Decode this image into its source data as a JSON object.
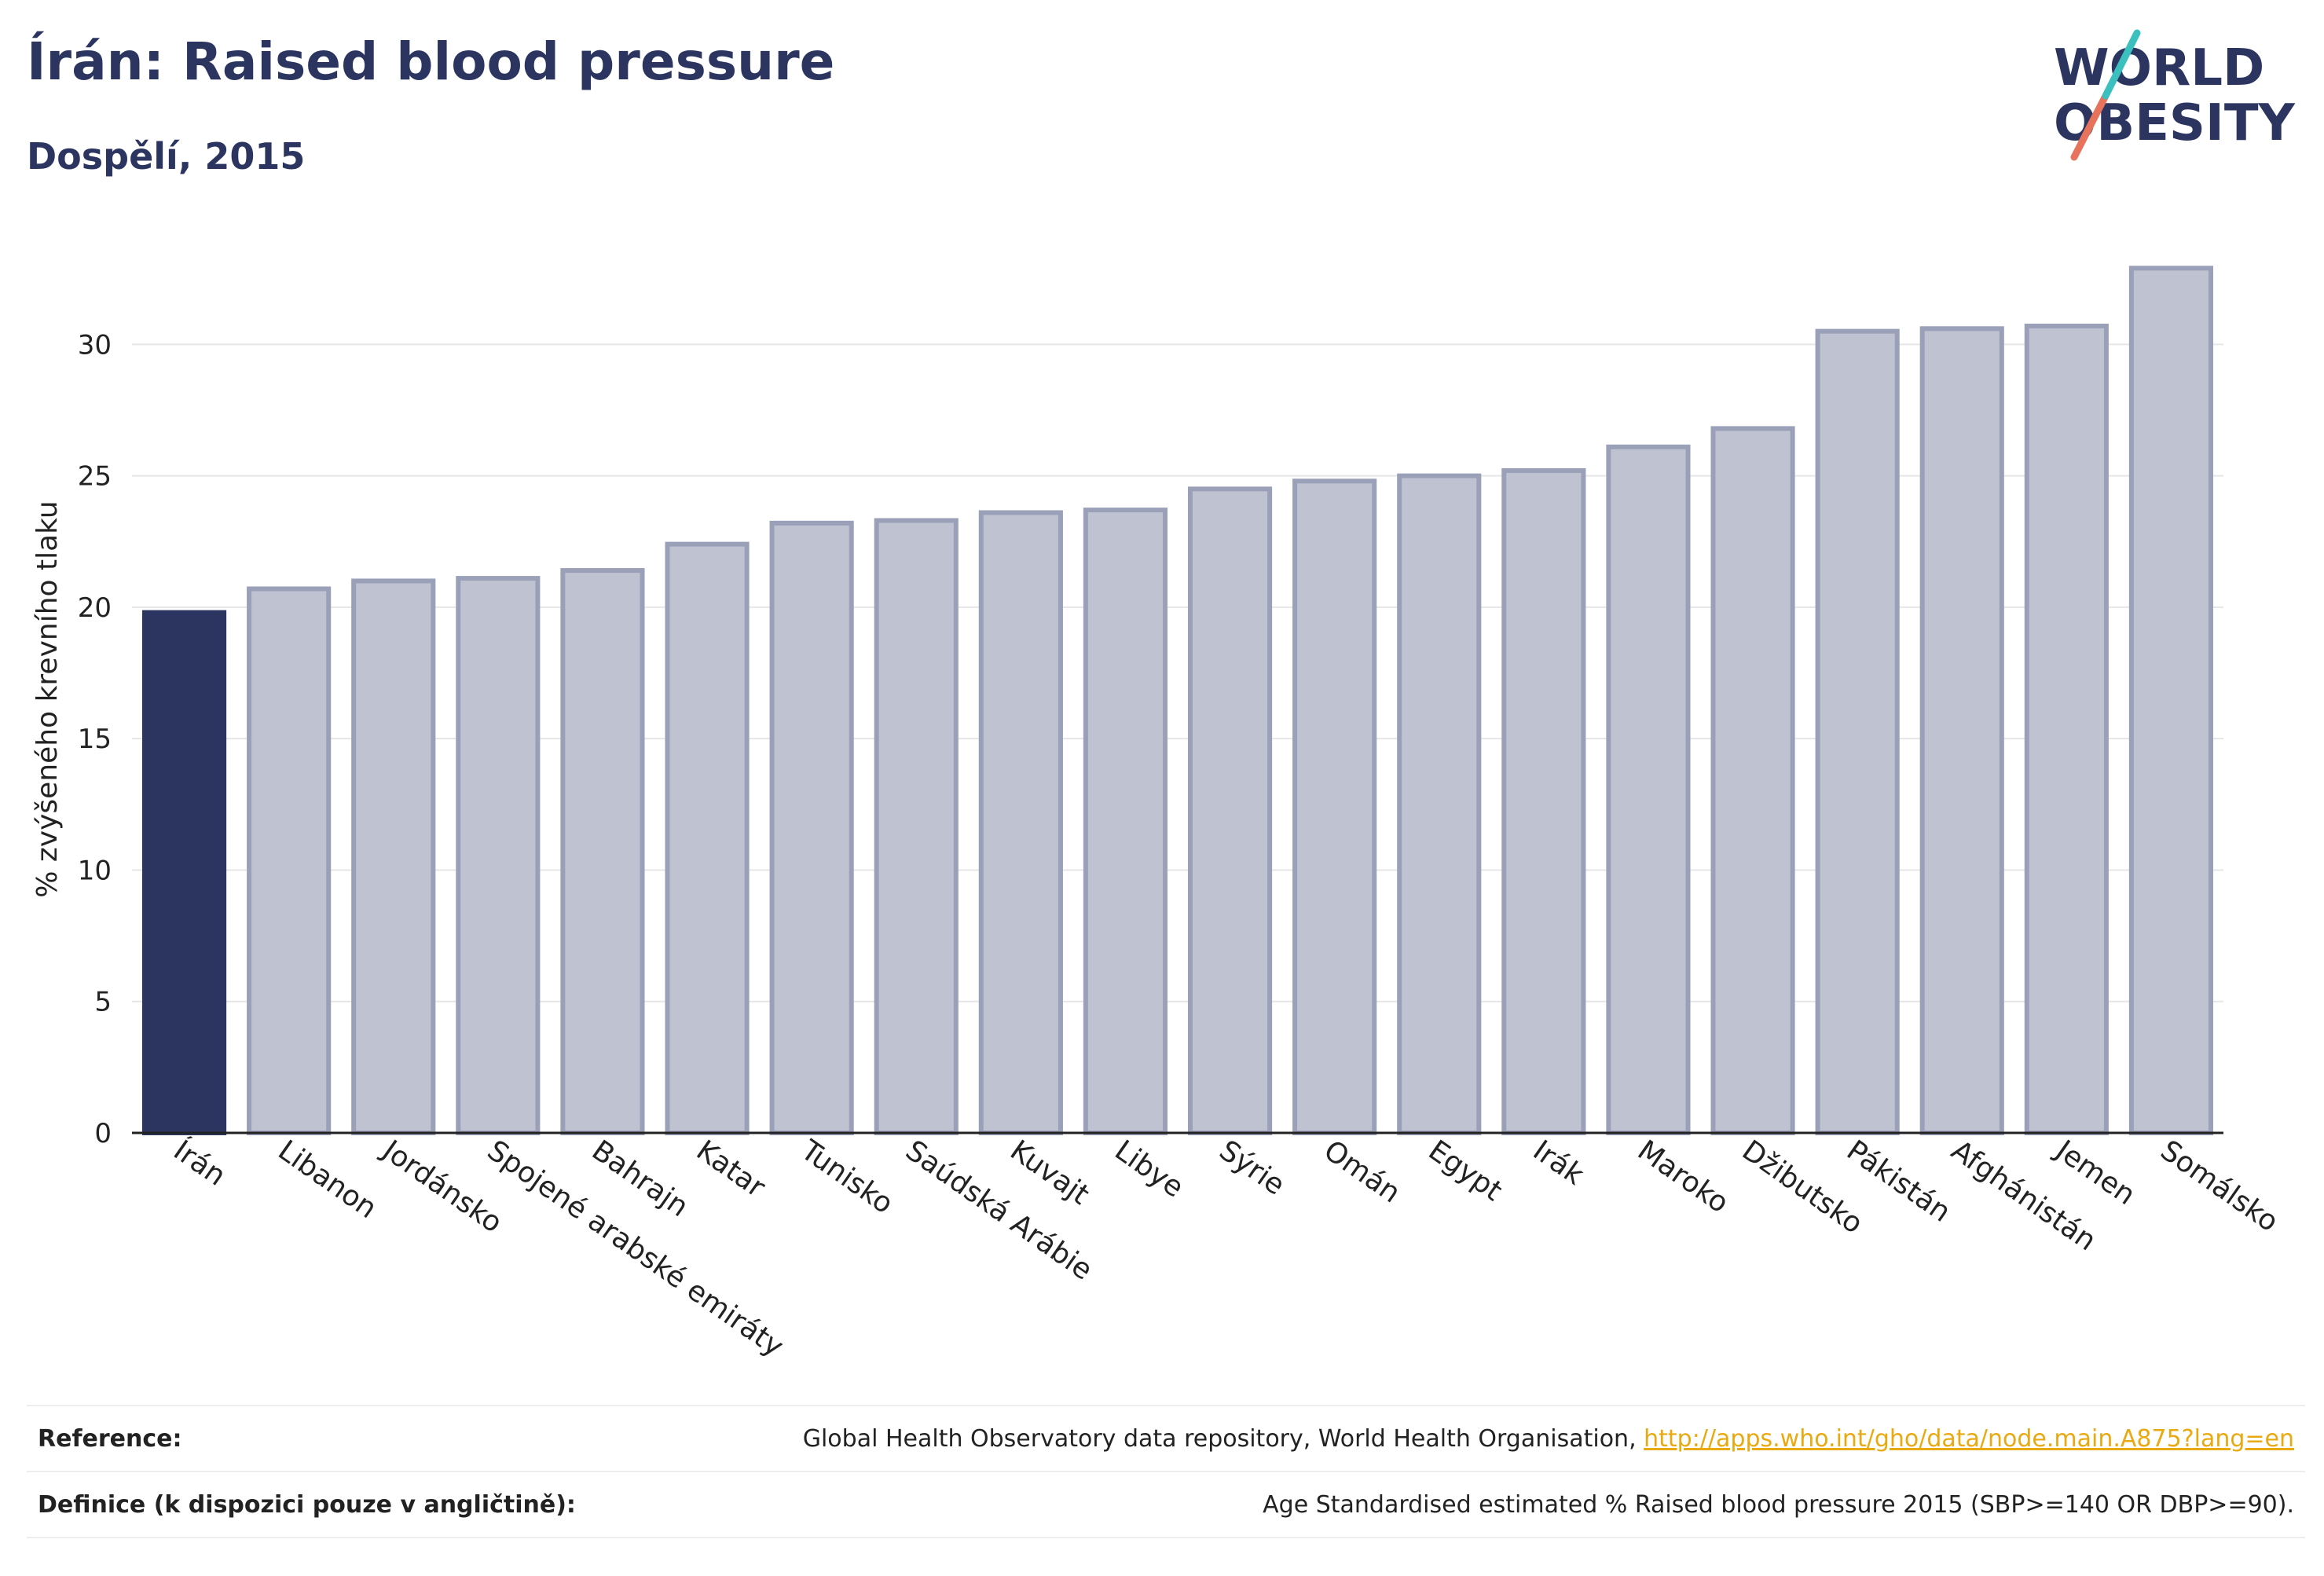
{
  "header": {
    "title": "Írán: Raised blood pressure",
    "subtitle": "Dospělí, 2015"
  },
  "logo": {
    "line1": "WORLD",
    "line2": "OBESITY"
  },
  "colors": {
    "highlight": "#2b3560",
    "bar_fill": "#bfc3d1",
    "bar_stroke": "#9aa0b8",
    "link": "#e8a911",
    "text": "#2b3560"
  },
  "chart_data": {
    "type": "bar",
    "ylabel": "% zvýšeného krevního tlaku",
    "xlabel": "",
    "ylim": [
      0,
      33
    ],
    "yticks": [
      0,
      5,
      10,
      15,
      20,
      25,
      30
    ],
    "grid": true,
    "highlight_category": "Írán",
    "categories": [
      "Írán",
      "Libanon",
      "Jordánsko",
      "Spojené arabské emiráty",
      "Bahrajn",
      "Katar",
      "Tunisko",
      "Saúdská Arábie",
      "Kuvajt",
      "Libye",
      "Sýrie",
      "Omán",
      "Egypt",
      "Irák",
      "Maroko",
      "Džibutsko",
      "Pákistán",
      "Afghánistán",
      "Jemen",
      "Somálsko"
    ],
    "values": [
      19.8,
      20.7,
      21.0,
      21.1,
      21.4,
      22.4,
      23.2,
      23.3,
      23.6,
      23.7,
      24.5,
      24.8,
      25.0,
      25.2,
      26.1,
      26.8,
      30.5,
      30.6,
      30.7,
      32.9
    ]
  },
  "footer": {
    "reference_label": "Reference:",
    "reference_text": "Global Health Observatory data repository, World Health Organisation, ",
    "reference_link": "http://apps.who.int/gho/data/node.main.A875?lang=en",
    "definition_label": "Definice (k dispozici pouze v angličtině):",
    "definition_text": "Age Standardised estimated % Raised blood pressure 2015 (SBP>=140 OR DBP>=90)."
  }
}
